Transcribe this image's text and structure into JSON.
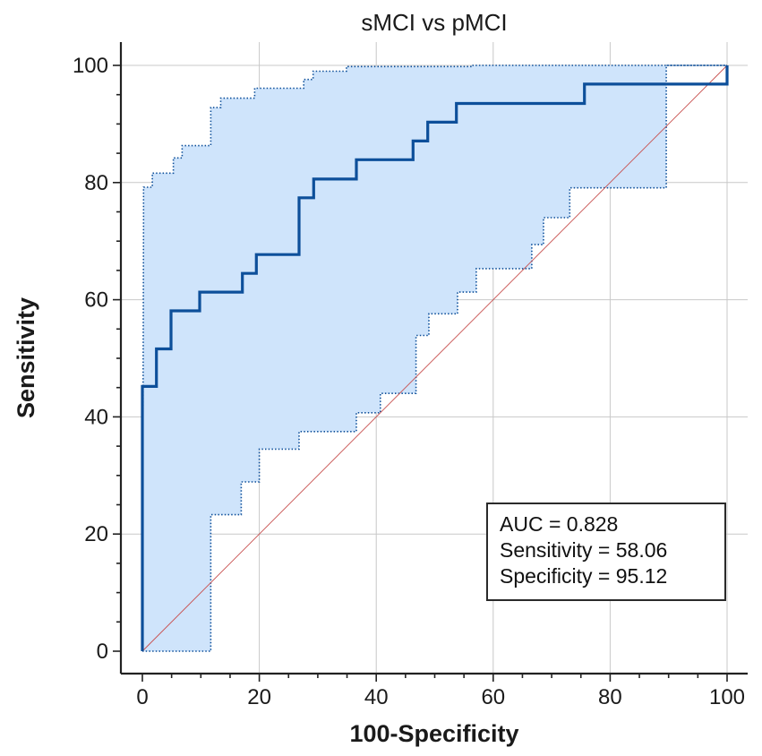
{
  "chart_data": {
    "type": "line",
    "title": "sMCI vs pMCI",
    "xlabel": "100-Specificity",
    "ylabel": "Sensitivity",
    "xlim": [
      0,
      100
    ],
    "ylim": [
      0,
      100
    ],
    "xticks": [
      0,
      20,
      40,
      60,
      80,
      100
    ],
    "yticks": [
      0,
      20,
      40,
      60,
      80,
      100
    ],
    "grid": true,
    "colors": {
      "roc": "#0d4f9a",
      "ci_fill": "#cfe4fb",
      "ci_border": "#0d4f9a",
      "reference": "#c8504f",
      "grid": "#c8c8c8",
      "axis": "#222222"
    },
    "series": [
      {
        "name": "ROC curve",
        "style": "step",
        "x": [
          0,
          0,
          2.4,
          2.4,
          4.9,
          4.9,
          9.8,
          9.8,
          17.1,
          17.1,
          19.5,
          19.5,
          26.8,
          26.8,
          29.3,
          29.3,
          36.6,
          36.6,
          46.3,
          46.3,
          48.8,
          48.8,
          53.7,
          53.7,
          75.6,
          75.6,
          100,
          100
        ],
        "y": [
          0,
          45.2,
          45.2,
          51.6,
          51.6,
          58.1,
          58.1,
          61.3,
          61.3,
          64.5,
          64.5,
          67.7,
          67.7,
          77.4,
          77.4,
          80.6,
          80.6,
          83.9,
          83.9,
          87.1,
          87.1,
          90.3,
          90.3,
          93.5,
          93.5,
          96.8,
          96.8,
          100
        ]
      },
      {
        "name": "95% CI upper bound",
        "style": "dotted",
        "x": [
          0,
          0.2,
          0.2,
          1.7,
          1.7,
          5.3,
          5.3,
          6.8,
          6.8,
          11.7,
          11.7,
          13.4,
          13.4,
          19.2,
          19.2,
          27.6,
          27.6,
          29.2,
          29.2,
          34.9,
          34.9,
          56.4,
          56.4,
          100,
          100
        ],
        "y": [
          0,
          73.5,
          79.2,
          79.2,
          81.6,
          81.6,
          84.2,
          84.2,
          86.3,
          86.3,
          92.8,
          92.8,
          94.4,
          94.4,
          96.1,
          96.1,
          97.6,
          97.6,
          99,
          99,
          99.8,
          99.8,
          100,
          100,
          100
        ]
      },
      {
        "name": "95% CI lower bound",
        "style": "dotted",
        "x": [
          0,
          11.7,
          11.7,
          16.9,
          16.9,
          20,
          20,
          26.8,
          26.8,
          36.6,
          36.6,
          40.7,
          40.7,
          46.8,
          46.8,
          49,
          49,
          53.9,
          53.9,
          57.1,
          57.1,
          66.6,
          66.6,
          68.6,
          68.6,
          73.1,
          73.1,
          89.6,
          89.6,
          100,
          100
        ],
        "y": [
          0,
          0,
          23.3,
          23.3,
          28.9,
          28.9,
          34.5,
          34.5,
          37.5,
          37.5,
          40.7,
          40.7,
          44,
          44,
          53.9,
          53.9,
          57.6,
          57.6,
          61.3,
          61.3,
          65.3,
          65.3,
          69.4,
          69.4,
          74,
          74,
          79.1,
          79.1,
          100,
          100,
          100
        ]
      },
      {
        "name": "Reference line",
        "style": "solid-thin",
        "x": [
          0,
          100
        ],
        "y": [
          0,
          100
        ]
      }
    ],
    "legend": {
      "placement": "bottom-right",
      "lines": [
        "AUC = 0.828",
        "Sensitivity = 58.06",
        "Specificity = 95.12"
      ]
    }
  }
}
